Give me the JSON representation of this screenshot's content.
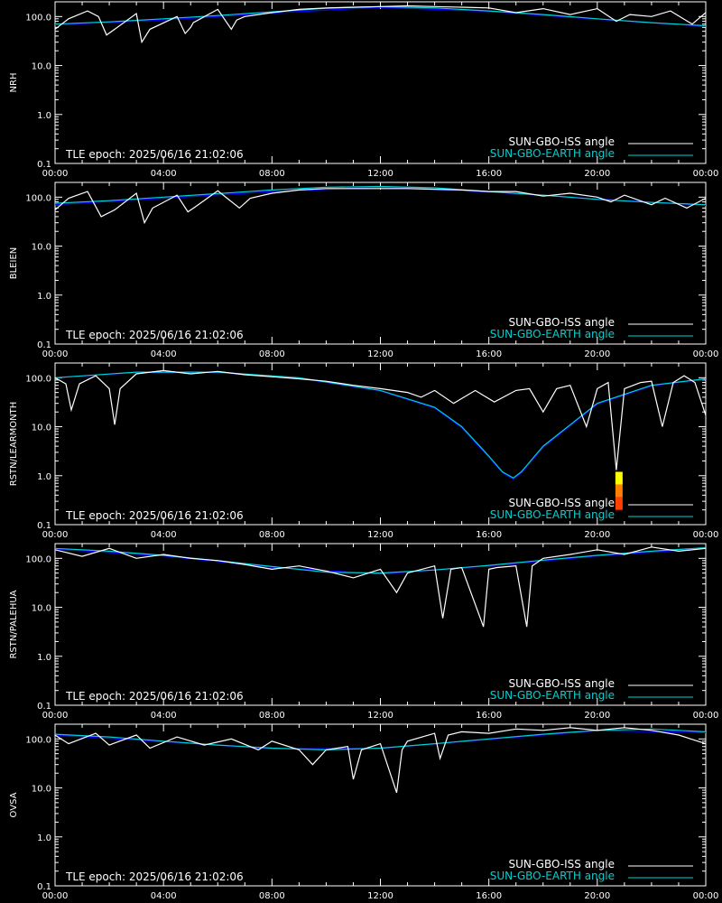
{
  "chart_data": [
    {
      "type": "line",
      "ylabel": "NRH",
      "epoch_label": "TLE epoch: 2025/06/16 21:02:06",
      "x_ticks": [
        "00:00",
        "04:00",
        "08:00",
        "12:00",
        "16:00",
        "20:00",
        "00:00"
      ],
      "y_ticks": [
        "0.1",
        "1.0",
        "10.0",
        "100.0"
      ],
      "xlim": [
        0,
        24
      ],
      "ylim": [
        0.1,
        200
      ],
      "yscale": "log",
      "series": [
        {
          "name": "SUN-GBO-ISS angle",
          "color": "#ffffff",
          "x": [
            0,
            0.5,
            1.2,
            1.6,
            1.9,
            2.2,
            3.0,
            3.2,
            3.5,
            4.5,
            4.8,
            5.0,
            5.1,
            6.0,
            6.5,
            6.7,
            7.0,
            8.0,
            9.0,
            10.0,
            11.0,
            12.0,
            13.0,
            14.0,
            15.0,
            16.0,
            17.0,
            18.0,
            19.0,
            20.0,
            20.7,
            21.2,
            22.0,
            22.7,
            23.5,
            24
          ],
          "y": [
            55,
            90,
            130,
            100,
            42,
            55,
            115,
            30,
            55,
            100,
            45,
            60,
            75,
            140,
            55,
            85,
            100,
            120,
            140,
            150,
            155,
            160,
            165,
            160,
            155,
            150,
            120,
            145,
            110,
            145,
            80,
            110,
            100,
            130,
            70,
            120
          ]
        },
        {
          "name": "SUN-GBO-EARTH angle",
          "color": "#00d0d0",
          "x": [
            0,
            2,
            4,
            6,
            8,
            10,
            12,
            14,
            16,
            18,
            20,
            22,
            24
          ],
          "y": [
            70,
            78,
            90,
            105,
            125,
            148,
            160,
            150,
            130,
            110,
            90,
            75,
            65
          ]
        },
        {
          "name": "",
          "color": "#0000ff",
          "x": [
            0,
            4,
            8,
            12,
            16,
            20,
            24
          ],
          "y": [
            68,
            85,
            118,
            155,
            128,
            88,
            63
          ]
        }
      ]
    },
    {
      "type": "line",
      "ylabel": "BLEIEN",
      "epoch_label": "TLE epoch: 2025/06/16 21:02:06",
      "x_ticks": [
        "00:00",
        "04:00",
        "08:00",
        "12:00",
        "16:00",
        "20:00",
        "00:00"
      ],
      "y_ticks": [
        "0.1",
        "1.0",
        "10.0",
        "100.0"
      ],
      "xlim": [
        0,
        24
      ],
      "ylim": [
        0.1,
        200
      ],
      "yscale": "log",
      "series": [
        {
          "name": "SUN-GBO-ISS angle",
          "color": "#ffffff",
          "x": [
            0,
            0.5,
            1.2,
            1.7,
            2.2,
            3.0,
            3.3,
            3.6,
            4.5,
            4.9,
            5.2,
            6.0,
            6.8,
            7.2,
            8.0,
            9.0,
            10.0,
            11.0,
            12.0,
            13.0,
            14.0,
            15.0,
            16.0,
            17.0,
            18.0,
            19.0,
            20.0,
            20.5,
            21.0,
            22.0,
            22.5,
            23.3,
            24
          ],
          "y": [
            55,
            95,
            130,
            40,
            55,
            120,
            30,
            60,
            110,
            50,
            65,
            135,
            60,
            95,
            120,
            140,
            150,
            150,
            150,
            150,
            145,
            140,
            130,
            130,
            105,
            120,
            100,
            80,
            110,
            70,
            95,
            60,
            95
          ]
        },
        {
          "name": "SUN-GBO-EARTH angle",
          "color": "#00d0d0",
          "x": [
            0,
            2,
            4,
            6,
            8,
            10,
            12,
            14,
            16,
            18,
            20,
            22,
            24
          ],
          "y": [
            75,
            85,
            100,
            118,
            140,
            160,
            165,
            155,
            130,
            110,
            90,
            78,
            70
          ]
        },
        {
          "name": "",
          "color": "#0000ff",
          "x": [
            0,
            4,
            8,
            12,
            16,
            20,
            24
          ],
          "y": [
            70,
            95,
            130,
            160,
            128,
            92,
            68
          ]
        }
      ]
    },
    {
      "type": "line",
      "ylabel": "RSTN/LEARMONTH",
      "epoch_label": "TLE epoch: 2025/06/16 21:02:06",
      "x_ticks": [
        "00:00",
        "04:00",
        "08:00",
        "12:00",
        "16:00",
        "20:00",
        "00:00"
      ],
      "y_ticks": [
        "0.1",
        "1.0",
        "10.0",
        "100.0"
      ],
      "xlim": [
        0,
        24
      ],
      "ylim": [
        0.1,
        200
      ],
      "yscale": "log",
      "series": [
        {
          "name": "SUN-GBO-ISS angle",
          "color": "#ffffff",
          "x": [
            0,
            0.4,
            0.6,
            0.9,
            1.5,
            2.0,
            2.2,
            2.4,
            3.0,
            4.0,
            5.0,
            6.0,
            7.0,
            8.0,
            9.0,
            10.0,
            11.0,
            12.0,
            13.0,
            13.5,
            14.0,
            14.7,
            15.5,
            16.2,
            17.0,
            17.5,
            18.0,
            18.5,
            19.0,
            19.6,
            20.0,
            20.4,
            20.7,
            21.0,
            21.6,
            22.0,
            22.4,
            22.8,
            23.2,
            23.6,
            24
          ],
          "y": [
            100,
            75,
            22,
            75,
            110,
            60,
            11,
            60,
            120,
            140,
            120,
            135,
            115,
            105,
            95,
            85,
            70,
            60,
            50,
            40,
            55,
            30,
            55,
            32,
            55,
            60,
            20,
            60,
            70,
            10,
            60,
            80,
            1.3,
            60,
            80,
            85,
            10,
            80,
            110,
            80,
            17
          ]
        },
        {
          "name": "SUN-GBO-EARTH angle",
          "color": "#00d0d0",
          "x": [
            0,
            3,
            6,
            9,
            12,
            14,
            15,
            16,
            16.5,
            16.9,
            17.2,
            18,
            20,
            22,
            24
          ],
          "y": [
            100,
            130,
            130,
            100,
            55,
            25,
            10,
            2.5,
            1.2,
            0.9,
            1.2,
            4,
            30,
            70,
            95
          ]
        },
        {
          "name": "",
          "color": "#0000ff",
          "x": [
            0,
            3,
            6,
            9,
            12,
            14,
            15,
            16,
            16.5,
            16.9,
            17.2,
            18,
            20,
            22,
            24
          ],
          "y": [
            100,
            128,
            128,
            98,
            54,
            24,
            9.5,
            2.4,
            1.15,
            0.85,
            1.15,
            3.8,
            29,
            68,
            94
          ]
        }
      ],
      "annotation_bar": {
        "x": 20.8,
        "y_bottom": 0.2,
        "y_top": 1.2,
        "colors": [
          "#ffff00",
          "#ff8000",
          "#ff4000"
        ]
      }
    },
    {
      "type": "line",
      "ylabel": "RSTN/PALEHUA",
      "epoch_label": "TLE epoch: 2025/06/16 21:02:06",
      "x_ticks": [
        "00:00",
        "04:00",
        "08:00",
        "12:00",
        "16:00",
        "20:00",
        "00:00"
      ],
      "y_ticks": [
        "0.1",
        "1.0",
        "10.0",
        "100.0"
      ],
      "xlim": [
        0,
        24
      ],
      "ylim": [
        0.1,
        200
      ],
      "yscale": "log",
      "series": [
        {
          "name": "SUN-GBO-ISS angle",
          "color": "#ffffff",
          "x": [
            0,
            1.0,
            2.0,
            3.0,
            4.0,
            5.0,
            6.0,
            7.0,
            8.0,
            9.0,
            10.0,
            11.0,
            12.0,
            12.6,
            13.0,
            14.0,
            14.3,
            14.6,
            15.0,
            15.8,
            16.0,
            16.3,
            17.0,
            17.4,
            17.6,
            18.0,
            19.0,
            20.0,
            21.0,
            22.0,
            23.0,
            24
          ],
          "y": [
            150,
            110,
            160,
            100,
            120,
            100,
            90,
            75,
            60,
            70,
            55,
            40,
            60,
            20,
            50,
            70,
            6,
            60,
            65,
            4,
            60,
            65,
            70,
            4,
            70,
            100,
            120,
            150,
            120,
            170,
            140,
            160
          ]
        },
        {
          "name": "SUN-GBO-EARTH angle",
          "color": "#00d0d0",
          "x": [
            0,
            2,
            4,
            6,
            8,
            10,
            12,
            14,
            16,
            18,
            20,
            22,
            24
          ],
          "y": [
            160,
            140,
            115,
            90,
            68,
            52,
            50,
            58,
            72,
            92,
            115,
            140,
            165
          ]
        },
        {
          "name": "",
          "color": "#0000ff",
          "x": [
            0,
            4,
            8,
            12,
            16,
            20,
            24
          ],
          "y": [
            155,
            112,
            66,
            48,
            70,
            112,
            160
          ]
        }
      ]
    },
    {
      "type": "line",
      "ylabel": "OVSA",
      "epoch_label": "TLE epoch: 2025/06/16 21:02:06",
      "x_ticks": [
        "00:00",
        "04:00",
        "08:00",
        "12:00",
        "16:00",
        "20:00",
        "00:00"
      ],
      "y_ticks": [
        "0.1",
        "1.0",
        "10.0",
        "100.0"
      ],
      "xlim": [
        0,
        24
      ],
      "ylim": [
        0.1,
        200
      ],
      "yscale": "log",
      "series": [
        {
          "name": "SUN-GBO-ISS angle",
          "color": "#ffffff",
          "x": [
            0,
            0.5,
            1.5,
            2.0,
            3.0,
            3.5,
            4.5,
            5.5,
            6.5,
            7.5,
            8.0,
            9.0,
            9.5,
            10.0,
            10.8,
            11.0,
            11.3,
            12.0,
            12.6,
            12.8,
            13.0,
            14.0,
            14.2,
            14.5,
            15.0,
            16.0,
            17.0,
            18.0,
            19.0,
            20.0,
            21.0,
            22.0,
            23.0,
            24
          ],
          "y": [
            120,
            80,
            130,
            75,
            120,
            65,
            110,
            75,
            100,
            60,
            90,
            60,
            30,
            60,
            70,
            15,
            60,
            80,
            8,
            60,
            90,
            130,
            40,
            120,
            140,
            130,
            160,
            150,
            170,
            150,
            170,
            150,
            120,
            80
          ]
        },
        {
          "name": "SUN-GBO-EARTH angle",
          "color": "#00d0d0",
          "x": [
            0,
            2,
            4,
            6,
            8,
            10,
            12,
            14,
            16,
            18,
            20,
            22,
            24
          ],
          "y": [
            125,
            110,
            90,
            75,
            65,
            60,
            65,
            80,
            100,
            125,
            150,
            160,
            140
          ]
        },
        {
          "name": "",
          "color": "#0000ff",
          "x": [
            0,
            4,
            8,
            12,
            16,
            20,
            24
          ],
          "y": [
            120,
            88,
            63,
            64,
            98,
            148,
            135
          ]
        }
      ]
    }
  ],
  "legend": {
    "iss_label": "SUN-GBO-ISS angle",
    "earth_label": "SUN-GBO-EARTH angle",
    "iss_color": "#ffffff",
    "earth_color": "#00d0d0"
  }
}
